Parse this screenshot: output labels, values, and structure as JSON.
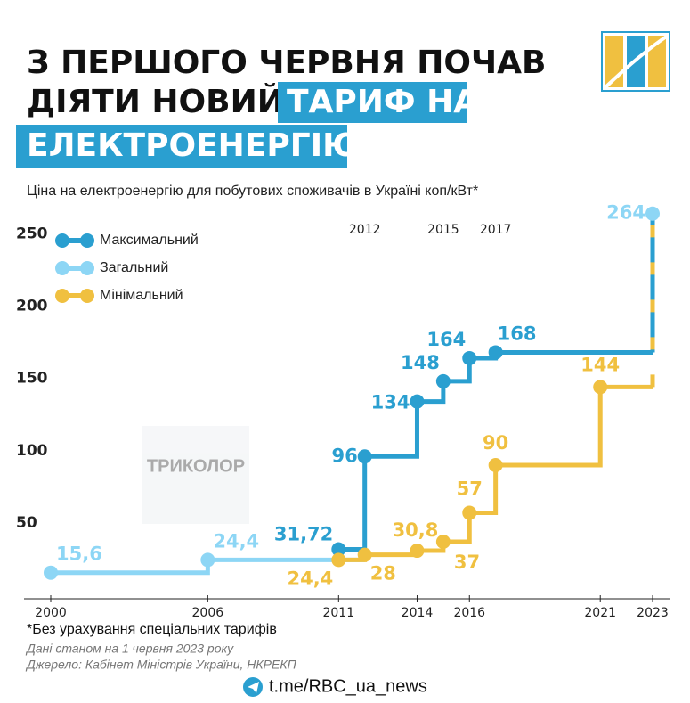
{
  "chart_data": {
    "type": "step",
    "title": [
      "З ПЕРШОГО ЧЕРВНЯ ПОЧАВ",
      "ДІЯТИ НОВИЙ",
      "ТАРИФ НА",
      "ЕЛЕКТРОЕНЕРГІЮ"
    ],
    "subtitle": "Ціна на електроенергію для побутових споживачів в Україні коп/кВт*",
    "watermark": "ТРИКОЛОР",
    "xlim": [
      2000,
      2023
    ],
    "ylim": [
      0,
      270
    ],
    "xticks": [
      2000,
      2006,
      2011,
      2014,
      2016,
      2021,
      2023
    ],
    "xticks_top": [
      2012,
      2015,
      2017
    ],
    "yticks": [
      50,
      100,
      150,
      200,
      250
    ],
    "legend": "top-left",
    "series": [
      {
        "name": "Максимальний",
        "color": "#2a9fd0",
        "x": [
          2011,
          2012,
          2014,
          2015,
          2016,
          2017
        ],
        "values": [
          31.72,
          96,
          134,
          148,
          164,
          168
        ],
        "value_labels": [
          "31,72",
          "96",
          "134",
          "148",
          "164",
          "168"
        ]
      },
      {
        "name": "Загальний",
        "color": "#8dd6f5",
        "x": [
          2000,
          2006,
          2012,
          2023
        ],
        "values": [
          15.6,
          24.4,
          null,
          264
        ],
        "value_labels": [
          "15,6",
          "24,4",
          null,
          "264"
        ]
      },
      {
        "name": "Мінімальний",
        "color": "#f0c040",
        "x": [
          2011,
          2012,
          2014,
          2015,
          2016,
          2017,
          2021
        ],
        "values": [
          24.4,
          28,
          30.8,
          37,
          57,
          90,
          144
        ],
        "value_labels": [
          "24,4",
          "28",
          "30,8",
          "37",
          "57",
          "90",
          "144"
        ]
      }
    ],
    "notes": [
      "*Без урахування спеціальних тарифів",
      "Дані станом на 1 червня 2023 року",
      "Джерело: Кабінет Міністрів України, НКРЕКП"
    ],
    "footer": "t.me/RBC_ua_news"
  }
}
